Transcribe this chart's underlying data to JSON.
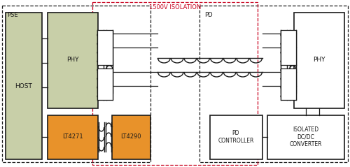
{
  "bg_color": "#ffffff",
  "black_color": "#1a1a1a",
  "red_dash_color": "#c8001e",
  "green_color": "#c8cfa8",
  "orange_color": "#e8922a",
  "white_color": "#ffffff",
  "pse_label": "PSE",
  "pd_label": "PD",
  "isolation_label": "1500V ISOLATION",
  "host_label": "HOST",
  "phy_left_label": "PHY",
  "lt4271_label": "LT4271",
  "lt4290_label": "LT4290",
  "phy_right_label": "PHY",
  "pd_ctrl_label": "PD\nCONTROLLER",
  "iso_dcdc_label": "ISOLATED\nDC/DC\nCONVERTER"
}
